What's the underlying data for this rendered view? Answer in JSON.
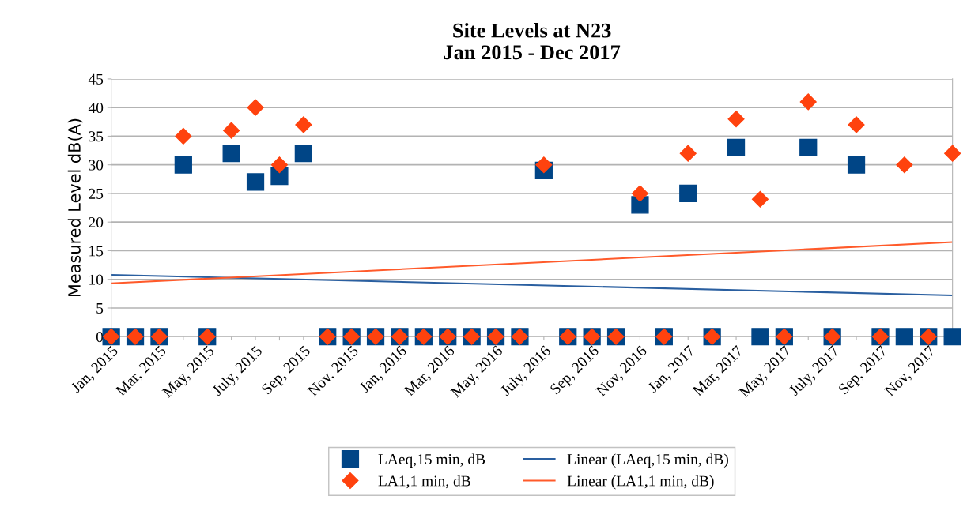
{
  "chart_data": {
    "type": "scatter",
    "title": "Site Levels at N23\nJan 2015 - Dec 2017",
    "ylabel": "Measured Level dB(A)",
    "categories": [
      "Jan, 2015",
      null,
      "Mar, 2015",
      null,
      "May, 2015",
      null,
      "July, 2015",
      null,
      "Sep, 2015",
      null,
      "Nov, 2015",
      null,
      "Jan, 2016",
      null,
      "Mar, 2016",
      null,
      "May, 2016",
      null,
      "July, 2016",
      null,
      "Sep, 2016",
      null,
      "Nov, 2016",
      null,
      "Jan, 2017",
      null,
      "Mar, 2017",
      null,
      "May, 2017",
      null,
      "July, 2017",
      null,
      "Sep, 2017",
      null,
      "Nov, 2017",
      null
    ],
    "series": [
      {
        "name": "LAeq,15 min, dB",
        "marker": "square",
        "color": "#004586",
        "values": [
          0,
          0,
          0,
          30,
          0,
          32,
          27,
          28,
          32,
          0,
          0,
          0,
          0,
          0,
          0,
          0,
          0,
          0,
          29,
          0,
          0,
          0,
          23,
          0,
          25,
          0,
          33,
          0,
          0,
          33,
          0,
          30,
          0,
          0,
          0,
          0
        ]
      },
      {
        "name": "Linear (LAeq,15 min, dB)",
        "type": "line",
        "line_style": "solid",
        "color": "#2a5fa0",
        "values": [
          10.8,
          null,
          null,
          null,
          null,
          null,
          null,
          null,
          null,
          null,
          null,
          null,
          null,
          null,
          null,
          null,
          null,
          null,
          null,
          null,
          null,
          null,
          null,
          null,
          null,
          null,
          null,
          null,
          null,
          null,
          null,
          null,
          null,
          null,
          null,
          7.2
        ]
      },
      {
        "name": "LA1,1 min, dB",
        "marker": "diamond",
        "color": "#ff420e",
        "values": [
          0,
          0,
          0,
          35,
          0,
          36,
          40,
          30,
          37,
          0,
          0,
          0,
          0,
          0,
          0,
          0,
          0,
          0,
          30,
          0,
          0,
          0,
          25,
          0,
          32,
          0,
          38,
          24,
          0,
          41,
          0,
          37,
          0,
          30,
          0,
          32
        ]
      },
      {
        "name": "Linear (LA1,1 min, dB)",
        "type": "line",
        "line_style": "solid",
        "color": "#ff5a2a",
        "values": [
          9.3,
          null,
          null,
          null,
          null,
          null,
          null,
          null,
          null,
          null,
          null,
          null,
          null,
          null,
          null,
          null,
          null,
          null,
          null,
          null,
          null,
          null,
          null,
          null,
          null,
          null,
          null,
          null,
          null,
          null,
          null,
          null,
          null,
          null,
          null,
          16.5
        ]
      }
    ],
    "ylim": [
      0,
      45
    ],
    "yticks": [
      0,
      5,
      10,
      15,
      20,
      25,
      30,
      35,
      40,
      45
    ],
    "grid": "y",
    "legend": "bottom"
  }
}
